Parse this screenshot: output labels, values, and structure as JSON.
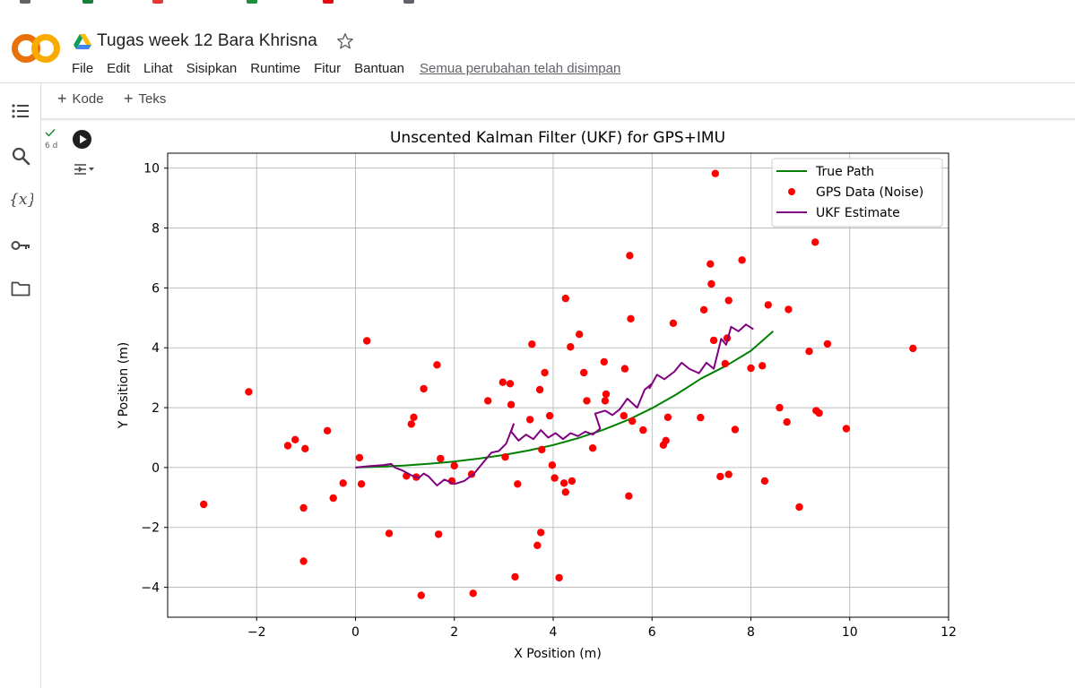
{
  "app": {
    "doc_title": "Tugas week 12 Bara Khrisna",
    "logo_text": "CO",
    "menu": [
      "File",
      "Edit",
      "Lihat",
      "Sisipkan",
      "Runtime",
      "Fitur",
      "Bantuan"
    ],
    "save_status": "Semua perubahan telah disimpan"
  },
  "toolbar": {
    "add_code": "Kode",
    "add_text": "Teks"
  },
  "sidebar": {
    "icons": [
      "toc-icon",
      "search-icon",
      "variables-icon",
      "key-icon",
      "folder-icon"
    ],
    "variables_label": "{x}"
  },
  "cell": {
    "elapsed": "6 d"
  },
  "colors": {
    "accent_orange": "#f9ab00",
    "logo_orange": "#e8710a",
    "true_path": "#008000",
    "gps": "#ff0000",
    "ukf": "#800080"
  },
  "chart_data": {
    "type": "line",
    "title": "Unscented Kalman Filter (UKF) for GPS+IMU",
    "xlabel": "X Position (m)",
    "ylabel": "Y Position (m)",
    "xlim": [
      -3.8,
      12.0
    ],
    "ylim": [
      -5.0,
      10.5
    ],
    "xticks": [
      -2,
      0,
      2,
      4,
      6,
      8,
      10,
      12
    ],
    "yticks": [
      -4,
      -2,
      0,
      2,
      4,
      6,
      8,
      10
    ],
    "xtick_labels": [
      "−2",
      "0",
      "2",
      "4",
      "6",
      "8",
      "10",
      "12"
    ],
    "ytick_labels": [
      "−4",
      "−2",
      "0",
      "2",
      "4",
      "6",
      "8",
      "10"
    ],
    "grid": true,
    "legend_position": "top-right",
    "legend": [
      "True Path",
      "GPS Data (Noise)",
      "UKF Estimate"
    ],
    "series": [
      {
        "name": "True Path",
        "kind": "line",
        "x": [
          0,
          0.5,
          1,
          1.5,
          2,
          2.5,
          3,
          3.5,
          4,
          4.5,
          5,
          5.5,
          6,
          6.5,
          7,
          7.5,
          8,
          8.45
        ],
        "y": [
          0,
          0.03,
          0.07,
          0.13,
          0.2,
          0.3,
          0.42,
          0.57,
          0.75,
          0.98,
          1.25,
          1.58,
          1.98,
          2.45,
          2.98,
          3.4,
          3.9,
          4.55
        ]
      },
      {
        "name": "GPS Data (Noise)",
        "kind": "scatter",
        "x": [
          -3.07,
          -2.16,
          -1.37,
          -1.22,
          -1.02,
          -1.05,
          -1.05,
          -0.57,
          -0.45,
          -0.25,
          0.08,
          0.12,
          0.23,
          0.68,
          1.03,
          1.13,
          1.18,
          1.23,
          1.33,
          1.38,
          1.65,
          1.68,
          1.72,
          1.95,
          2.0,
          2.35,
          2.38,
          2.68,
          2.98,
          3.03,
          3.13,
          3.15,
          3.23,
          3.28,
          3.53,
          3.57,
          3.68,
          3.73,
          3.75,
          3.77,
          3.83,
          3.93,
          3.98,
          4.03,
          4.12,
          4.22,
          4.25,
          4.25,
          4.35,
          4.38,
          4.53,
          4.62,
          4.68,
          4.8,
          5.03,
          5.05,
          5.07,
          5.43,
          5.45,
          5.53,
          5.55,
          5.57,
          5.6,
          5.82,
          6.23,
          6.28,
          6.32,
          6.43,
          6.98,
          7.05,
          7.18,
          7.2,
          7.25,
          7.28,
          7.38,
          7.48,
          7.52,
          7.55,
          7.55,
          7.68,
          7.82,
          8.0,
          8.23,
          8.28,
          8.35,
          8.58,
          8.73,
          8.76,
          8.98,
          9.18,
          9.3,
          9.32,
          9.38,
          9.55,
          9.93,
          11.28
        ],
        "y": [
          -1.23,
          2.53,
          0.73,
          0.93,
          0.63,
          -1.35,
          -3.13,
          1.23,
          -1.02,
          -0.52,
          0.33,
          -0.55,
          4.23,
          -2.2,
          -0.28,
          1.45,
          1.68,
          -0.32,
          -4.27,
          2.63,
          3.43,
          -2.23,
          0.3,
          -0.45,
          0.06,
          -0.22,
          -4.2,
          2.23,
          2.85,
          0.35,
          2.8,
          2.1,
          -3.65,
          -0.55,
          1.6,
          4.12,
          -2.6,
          2.6,
          -2.17,
          0.6,
          3.17,
          1.73,
          0.08,
          -0.35,
          -3.68,
          -0.52,
          -0.82,
          5.65,
          4.03,
          -0.45,
          4.45,
          3.17,
          2.23,
          0.65,
          3.53,
          2.23,
          2.45,
          1.73,
          3.3,
          -0.95,
          7.08,
          4.97,
          1.55,
          1.25,
          0.75,
          0.9,
          1.68,
          4.82,
          1.67,
          5.27,
          6.8,
          6.13,
          4.25,
          9.82,
          -0.3,
          3.47,
          4.32,
          -0.23,
          5.58,
          1.27,
          6.93,
          3.32,
          3.4,
          -0.45,
          5.43,
          2.0,
          1.52,
          5.28,
          -1.32,
          3.88,
          7.53,
          1.9,
          1.82,
          4.13,
          1.3,
          3.98
        ]
      },
      {
        "name": "UKF Estimate",
        "kind": "line",
        "x": [
          0,
          0.3,
          0.55,
          0.72,
          0.8,
          0.95,
          1.12,
          1.28,
          1.38,
          1.48,
          1.65,
          1.8,
          2.0,
          2.2,
          2.4,
          2.6,
          2.75,
          2.9,
          3.05,
          3.2,
          3.15,
          3.3,
          3.45,
          3.6,
          3.75,
          3.9,
          4.05,
          4.2,
          4.35,
          4.5,
          4.65,
          4.8,
          4.95,
          4.85,
          5.05,
          5.2,
          5.35,
          5.5,
          5.7,
          5.85,
          6.0,
          5.95,
          6.1,
          6.25,
          6.45,
          6.6,
          6.75,
          6.95,
          7.1,
          7.25,
          7.4,
          7.5,
          7.6,
          7.75,
          7.9,
          8.05
        ],
        "y": [
          0.0,
          0.05,
          0.08,
          0.12,
          0.0,
          -0.1,
          -0.25,
          -0.35,
          -0.2,
          -0.3,
          -0.6,
          -0.4,
          -0.55,
          -0.45,
          -0.2,
          0.2,
          0.5,
          0.55,
          0.8,
          1.45,
          1.2,
          0.9,
          1.1,
          0.95,
          1.25,
          1.0,
          1.15,
          0.95,
          1.15,
          1.05,
          1.2,
          1.1,
          1.3,
          1.8,
          1.9,
          1.75,
          1.95,
          2.3,
          2.0,
          2.6,
          2.8,
          2.65,
          3.1,
          2.95,
          3.2,
          3.5,
          3.3,
          3.15,
          3.5,
          3.3,
          4.3,
          4.1,
          4.7,
          4.55,
          4.78,
          4.62
        ]
      }
    ]
  }
}
